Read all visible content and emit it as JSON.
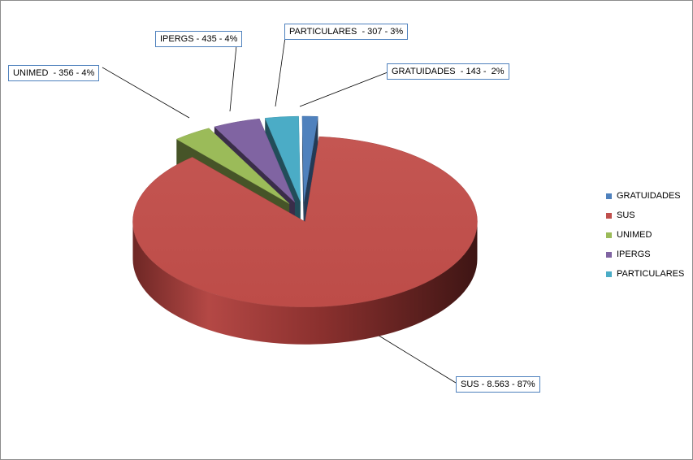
{
  "chart_data": {
    "type": "pie",
    "title": "",
    "slices": [
      {
        "name": "GRATUIDADES",
        "value": 143,
        "percent": 2,
        "label": "GRATUIDADES  - 143 -  2%",
        "color": "#4f81bd"
      },
      {
        "name": "SUS",
        "value": 8563,
        "percent": 87,
        "label": "SUS - 8.563 - 87%",
        "color": "#c0504d"
      },
      {
        "name": "UNIMED",
        "value": 356,
        "percent": 4,
        "label": "UNIMED  - 356 - 4%",
        "color": "#9bbb59"
      },
      {
        "name": "IPERGS",
        "value": 435,
        "percent": 4,
        "label": "IPERGS - 435 - 4%",
        "color": "#8064a2"
      },
      {
        "name": "PARTICULARES",
        "value": 307,
        "percent": 3,
        "label": "PARTICULARES  - 307 - 3%",
        "color": "#4bacc6"
      }
    ],
    "legend_position": "right",
    "three_d": true,
    "exploded": true
  }
}
